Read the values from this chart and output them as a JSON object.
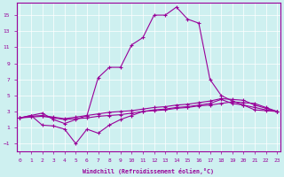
{
  "xlabel": "Windchill (Refroidissement éolien,°C)",
  "background_color": "#cef0f0",
  "line_color": "#990099",
  "x_ticks": [
    0,
    1,
    2,
    3,
    4,
    5,
    6,
    7,
    8,
    9,
    10,
    11,
    12,
    13,
    14,
    15,
    16,
    17,
    18,
    19,
    20,
    21,
    22,
    23
  ],
  "y_ticks": [
    -1,
    1,
    3,
    5,
    7,
    9,
    11,
    13,
    15
  ],
  "ylim": [
    -2.0,
    16.5
  ],
  "xlim": [
    -0.3,
    23.3
  ],
  "curve_peak_x": [
    0,
    1,
    2,
    3,
    4,
    5,
    6,
    7,
    8,
    9,
    10,
    11,
    12,
    13,
    14,
    15,
    16,
    17,
    18,
    19,
    20,
    21,
    22,
    23
  ],
  "curve_peak_y": [
    2.2,
    2.5,
    2.8,
    2.0,
    1.5,
    2.0,
    2.5,
    7.2,
    8.5,
    8.5,
    11.3,
    12.2,
    15.0,
    15.0,
    16.0,
    14.5,
    14.0,
    7.0,
    5.0,
    4.3,
    3.8,
    3.2,
    3.1,
    3.0
  ],
  "curve_flat1_x": [
    0,
    1,
    2,
    3,
    4,
    5,
    6,
    7,
    8,
    9,
    10,
    11,
    12,
    13,
    14,
    15,
    16,
    17,
    18,
    19,
    20,
    21,
    22,
    23
  ],
  "curve_flat1_y": [
    2.2,
    2.3,
    2.4,
    2.2,
    2.0,
    2.1,
    2.2,
    2.4,
    2.5,
    2.6,
    2.8,
    3.0,
    3.1,
    3.2,
    3.4,
    3.5,
    3.7,
    3.8,
    4.0,
    4.2,
    4.1,
    4.0,
    3.5,
    3.0
  ],
  "curve_flat2_x": [
    0,
    1,
    2,
    3,
    4,
    5,
    6,
    7,
    8,
    9,
    10,
    11,
    12,
    13,
    14,
    15,
    16,
    17,
    18,
    19,
    20,
    21,
    22,
    23
  ],
  "curve_flat2_y": [
    2.2,
    2.4,
    2.5,
    2.3,
    2.1,
    2.3,
    2.5,
    2.7,
    2.9,
    3.0,
    3.1,
    3.3,
    3.5,
    3.6,
    3.8,
    3.9,
    4.1,
    4.3,
    4.6,
    4.5,
    4.4,
    3.8,
    3.4,
    3.0
  ],
  "curve_zigzag_x": [
    0,
    1,
    2,
    3,
    4,
    5,
    6,
    7,
    8,
    9,
    10,
    11,
    12,
    13,
    14,
    15,
    16,
    17,
    18,
    19,
    20,
    21,
    22,
    23
  ],
  "curve_zigzag_y": [
    2.2,
    2.5,
    1.3,
    1.2,
    0.8,
    -1.0,
    0.8,
    0.3,
    1.3,
    2.0,
    2.5,
    3.0,
    3.2,
    3.3,
    3.5,
    3.6,
    3.8,
    4.0,
    4.5,
    4.0,
    3.8,
    3.5,
    3.2,
    3.0
  ]
}
